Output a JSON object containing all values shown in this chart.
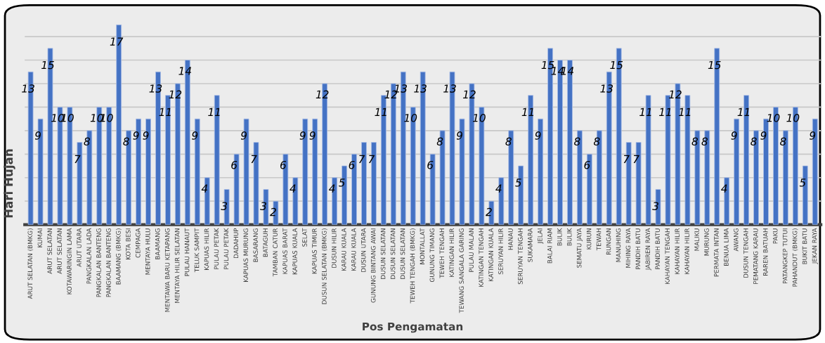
{
  "chart_data": {
    "type": "bar",
    "xlabel": "Pos Pengamatan",
    "ylabel": "Hari Hujan",
    "categories": [
      "ARUT SELATAN (BMKG)",
      "KUMAI",
      "ARUT SELATAN",
      "ARUT SELATAN",
      "KOTAWARINGIN LAMA",
      "ARUT UTARA",
      "PANGKALAN LADA",
      "PANGKALAN BANTENG",
      "PANGKALAN BANTENG",
      "BAAMANG (BMKG)",
      "KOTA BESI",
      "CEMPAGA",
      "MENTAYA HULU",
      "BAAMANG",
      "MENTAWA BARU KETAPANG",
      "MENTAYA HILIR SELATAN",
      "PULAU HANAUT",
      "TELUK SAMPIT",
      "KAPUAS HILIR",
      "PULAU PETAK",
      "PULAU PETAK",
      "DADAHUP",
      "KAPUAS MURUNG",
      "BASARANG",
      "BATAGUH",
      "TAMBAN CATUR",
      "KAPUAS BARAT",
      "KAPUAS KUALA",
      "SELAT",
      "KAPUAS TIMUR",
      "DUSUN SELATAN (BMKG)",
      "DUSUN HILIR",
      "KARAU KUALA",
      "KARAU KUALA",
      "DUSUN UTARA",
      "GUNUNG BINTANG AWAI",
      "DUSUN SELATAN",
      "DUSUN SELATAN",
      "DUSUN SELATAN",
      "TEWEH TENGAH (BMKG)",
      "MONTALLAT",
      "GUNUNG TIMANG",
      "TEWEH TENGAH",
      "KATINGAN HILIR",
      "TEWANG SANGALA GARING",
      "PULAU MALAN",
      "KATINGAN TENGAH",
      "KATINGAN KUALA",
      "SERUYAN HILIR",
      "HANAU",
      "SERUYAN TENGAH",
      "SUKAMARA",
      "JELAI",
      "BALAI RIAM",
      "BULIK",
      "BULIK",
      "SEMATU JAYA",
      "KURUN",
      "TEWAH",
      "RUNGAN",
      "MANUHING",
      "MIHING RAYA",
      "PANDIH BATU",
      "JABIREN RAYA",
      "PANDIH BATU",
      "KAHAYAN TENGAH",
      "KAHAYAN HILIR",
      "KAHAYAN HILIR",
      "MALIKU",
      "MURUNG",
      "PERMATA INTAN",
      "BENUA LIMA",
      "AWANG",
      "DUSUN TENGAH",
      "PEMATANG KARAU",
      "RAREN BATUAH",
      "PAKU",
      "PATANGKEP TUTUI",
      "PAHANDUT (BMKG)",
      "BUKIT BATU",
      "JEKAN RAYA"
    ],
    "values": [
      13,
      9,
      15,
      10,
      10,
      7,
      8,
      10,
      10,
      17,
      8,
      9,
      9,
      13,
      11,
      12,
      14,
      9,
      4,
      11,
      3,
      6,
      9,
      7,
      3,
      2,
      6,
      4,
      9,
      9,
      12,
      4,
      5,
      6,
      7,
      7,
      11,
      12,
      13,
      10,
      13,
      6,
      8,
      13,
      9,
      12,
      10,
      2,
      4,
      8,
      5,
      11,
      9,
      15,
      14,
      14,
      8,
      6,
      8,
      13,
      15,
      7,
      7,
      11,
      3,
      11,
      12,
      11,
      8,
      8,
      15,
      4,
      9,
      11,
      8,
      9,
      10,
      8,
      10,
      5,
      9
    ],
    "color": "#4472c4",
    "data_labels": true,
    "grid": "y",
    "tick_labels": "x",
    "yticks": [
      {
        "value": 2,
        "label": null
      },
      {
        "value": 4,
        "label": null
      },
      {
        "value": 6,
        "label": null
      },
      {
        "value": 8,
        "label": null
      },
      {
        "value": 10,
        "label": null
      },
      {
        "value": 12,
        "label": null
      },
      {
        "value": 14,
        "label": null
      },
      {
        "value": 16,
        "label": null
      }
    ]
  }
}
